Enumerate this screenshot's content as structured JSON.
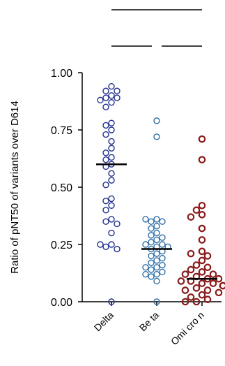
{
  "chart_data": {
    "type": "scatter",
    "ylabel": "Ratio of pNT50 of variants over D614",
    "xlabel": "",
    "ylim": [
      0,
      1.0
    ],
    "yticks": [
      "0.00",
      "0.25",
      "0.50",
      "0.75",
      "1.00"
    ],
    "categories": [
      "Delta",
      "Be ta",
      "Omi cro n"
    ],
    "series": [
      {
        "category": "Delta",
        "color": "#1f2f8f",
        "median": 0.6,
        "values": [
          0.94,
          0.92,
          0.92,
          0.9,
          0.89,
          0.89,
          0.88,
          0.87,
          0.85,
          0.78,
          0.77,
          0.75,
          0.73,
          0.7,
          0.67,
          0.65,
          0.63,
          0.62,
          0.6,
          0.59,
          0.56,
          0.53,
          0.51,
          0.45,
          0.44,
          0.42,
          0.4,
          0.36,
          0.35,
          0.34,
          0.3,
          0.25,
          0.25,
          0.24,
          0.23,
          0.0
        ]
      },
      {
        "category": "Be ta",
        "color": "#2f6fa7",
        "median": 0.23,
        "values": [
          0.79,
          0.72,
          0.36,
          0.36,
          0.35,
          0.35,
          0.33,
          0.32,
          0.3,
          0.29,
          0.28,
          0.27,
          0.26,
          0.25,
          0.25,
          0.24,
          0.24,
          0.23,
          0.22,
          0.21,
          0.2,
          0.19,
          0.18,
          0.17,
          0.16,
          0.15,
          0.15,
          0.14,
          0.13,
          0.12,
          0.12,
          0.11,
          0.09,
          0.0
        ]
      },
      {
        "category": "Omi cro n",
        "color": "#8b1a1a",
        "median": 0.1,
        "values": [
          0.71,
          0.62,
          0.42,
          0.4,
          0.38,
          0.37,
          0.32,
          0.27,
          0.22,
          0.21,
          0.2,
          0.18,
          0.16,
          0.15,
          0.14,
          0.13,
          0.12,
          0.12,
          0.11,
          0.1,
          0.1,
          0.09,
          0.09,
          0.08,
          0.08,
          0.07,
          0.07,
          0.06,
          0.05,
          0.05,
          0.04,
          0.03,
          0.02,
          0.01,
          0.0,
          0.0
        ]
      }
    ]
  }
}
